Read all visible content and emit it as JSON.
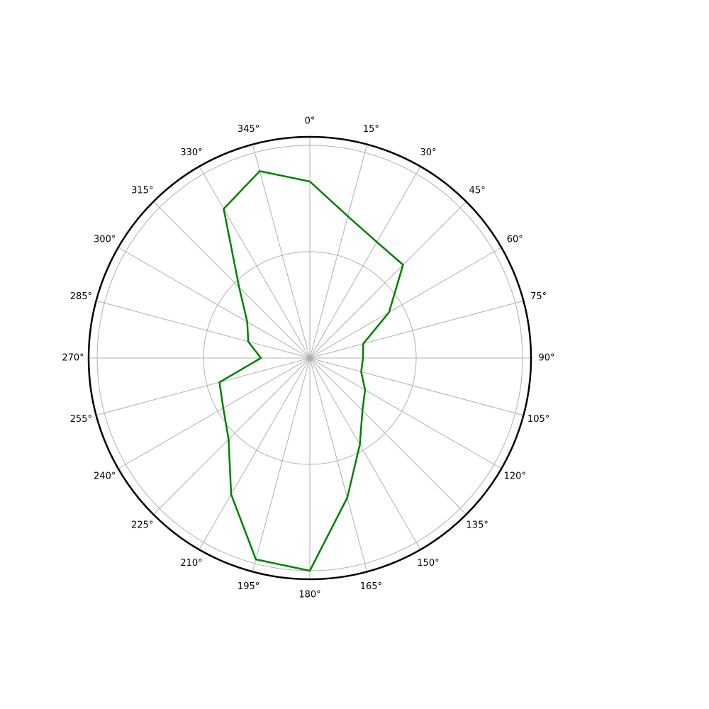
{
  "chart_data": {
    "type": "line",
    "projection": "polar",
    "theta_zero": "top",
    "theta_direction": "clockwise",
    "theta_unit": "degrees",
    "theta_ticks": [
      "0°",
      "15°",
      "30°",
      "45°",
      "60°",
      "75°",
      "90°",
      "105°",
      "120°",
      "135°",
      "150°",
      "165°",
      "180°",
      "195°",
      "210°",
      "225°",
      "240°",
      "255°",
      "270°",
      "285°",
      "300°",
      "315°",
      "330°",
      "345°"
    ],
    "r_gridlines": [
      0.5,
      1.0
    ],
    "rlim": [
      0,
      1.04
    ],
    "r_tick_labels_visible": false,
    "grid": true,
    "series": [
      {
        "color": "#008000",
        "theta": [
          0,
          15,
          30,
          45,
          60,
          75,
          90,
          105,
          120,
          135,
          150,
          165,
          180,
          195,
          210,
          225,
          240,
          255,
          270,
          285,
          300,
          315,
          330,
          345,
          360
        ],
        "r": [
          0.83,
          0.69,
          0.63,
          0.62,
          0.43,
          0.26,
          0.25,
          0.25,
          0.3,
          0.35,
          0.47,
          0.68,
          1.0,
          0.98,
          0.74,
          0.54,
          0.47,
          0.44,
          0.23,
          0.3,
          0.34,
          0.47,
          0.81,
          0.91,
          0.83
        ]
      }
    ]
  }
}
